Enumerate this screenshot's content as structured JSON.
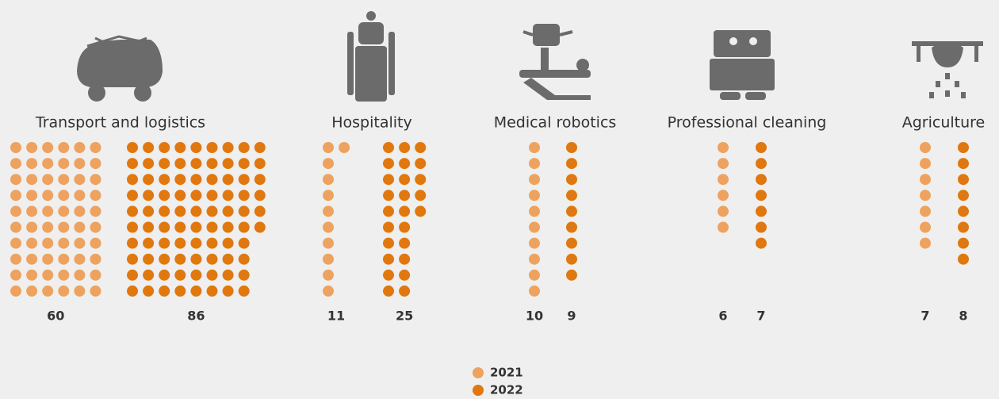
{
  "chart_data": {
    "type": "waffle",
    "categories": [
      "Transport and logistics",
      "Hospitality",
      "Medical robotics",
      "Professional cleaning",
      "Agriculture"
    ],
    "series": [
      {
        "name": "2021",
        "color": "#eda35f",
        "values": [
          60,
          11,
          10,
          6,
          7
        ]
      },
      {
        "name": "2022",
        "color": "#e0780f",
        "values": [
          86,
          25,
          9,
          7,
          8
        ]
      }
    ]
  }
}
